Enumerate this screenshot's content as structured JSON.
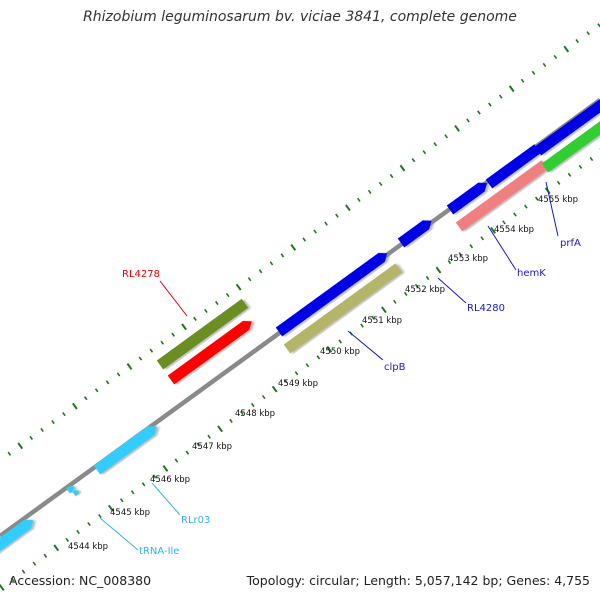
{
  "header": {
    "title": "Rhizobium leguminosarum bv. viciae 3841, complete genome"
  },
  "footer": {
    "accession": "Accession: NC_008380",
    "topology": "Topology: circular; Length: 5,057,142 bp; Genes: 4,755"
  },
  "colors": {
    "backbone": "#8a8a8a",
    "ruler_ticks": "#1a7a1a",
    "tick_label": "#111111",
    "gene_blue": "#0000e6",
    "gene_olive": "#6b8e23",
    "gene_red": "#ff0000",
    "gene_khaki": "#b5b56a",
    "gene_salmon": "#f08080",
    "gene_green": "#32cd32",
    "gene_cyan": "#33ccff",
    "label_blue": "#1a1acc",
    "label_red": "#e60000",
    "label_cyan": "#33b5e5"
  },
  "scale_labels": [
    "4544 kbp",
    "4545 kbp",
    "4546 kbp",
    "4547 kbp",
    "4548 kbp",
    "4549 kbp",
    "4550 kbp",
    "4551 kbp",
    "4552 kbp",
    "4553 kbp",
    "4554 kbp",
    "4555 kbp"
  ],
  "gene_labels": {
    "rl4278": "RL4278",
    "clpb": "clpB",
    "rl4280": "RL4280",
    "hemk": "hemK",
    "prfa": "prfA",
    "rlr03": "RLr03",
    "trna_ile": "tRNA-Ile"
  }
}
